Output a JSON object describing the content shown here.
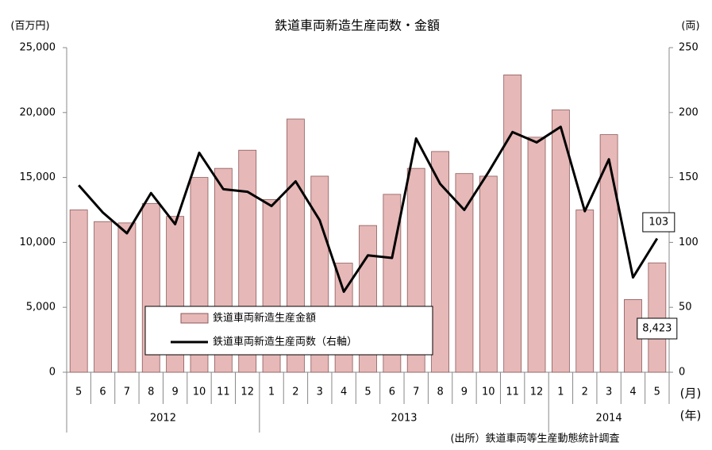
{
  "chart_data": {
    "type": "bar_line",
    "title": "鉄道車両新造生産両数・金額",
    "y_unit": "(百万円)",
    "y2_unit": "(両)",
    "month_unit": "(月)",
    "year_unit": "(年)",
    "source": "(出所）鉄道車両等生産動態統計調査",
    "categories": [
      "5",
      "6",
      "7",
      "8",
      "9",
      "10",
      "11",
      "12",
      "1",
      "2",
      "3",
      "4",
      "5",
      "6",
      "7",
      "8",
      "9",
      "10",
      "11",
      "12",
      "1",
      "2",
      "3",
      "4",
      "5"
    ],
    "years": [
      "2012",
      "2013",
      "2014"
    ],
    "series": [
      {
        "name": "鉄道車両新造生産金額",
        "type": "bar",
        "color": "#e6b8b7",
        "stroke": "#8c5a5a",
        "values": [
          12500,
          11600,
          11500,
          13000,
          12000,
          15000,
          15700,
          17100,
          13300,
          19500,
          15100,
          8400,
          11300,
          13700,
          15700,
          17000,
          15300,
          15100,
          22900,
          18100,
          20200,
          12500,
          18300,
          5600,
          8423
        ],
        "value_labels": [
          null,
          null,
          null,
          null,
          null,
          null,
          null,
          null,
          null,
          null,
          null,
          null,
          null,
          null,
          null,
          null,
          null,
          null,
          null,
          null,
          null,
          null,
          null,
          null,
          "8,423"
        ]
      },
      {
        "name": "鉄道車両新造生産両数（右軸）",
        "type": "line",
        "axis": "y2",
        "color": "#000000",
        "values": [
          144,
          123,
          107,
          138,
          114,
          169,
          141,
          139,
          128,
          147,
          117,
          62,
          90,
          88,
          180,
          145,
          125,
          154,
          185,
          177,
          189,
          124,
          164,
          73,
          103
        ],
        "labeled": [
          false,
          false,
          false,
          false,
          false,
          false,
          false,
          false,
          false,
          false,
          false,
          false,
          false,
          false,
          false,
          false,
          false,
          false,
          false,
          false,
          false,
          false,
          false,
          false,
          true
        ]
      }
    ],
    "ylim": [
      0,
      25000
    ],
    "yticks": [
      0,
      {
        "value": 5000,
        "label": "5,000"
      },
      {
        "value": 10000,
        "label": "10,000"
      },
      {
        "value": 15000,
        "label": "15,000"
      },
      {
        "value": 20000,
        "label": "20,000"
      },
      {
        "value": 25000,
        "label": "25,000"
      }
    ],
    "y2lim": [
      0,
      250
    ],
    "y2ticks": [
      0,
      50,
      100,
      150,
      200,
      250
    ],
    "grid": false
  }
}
